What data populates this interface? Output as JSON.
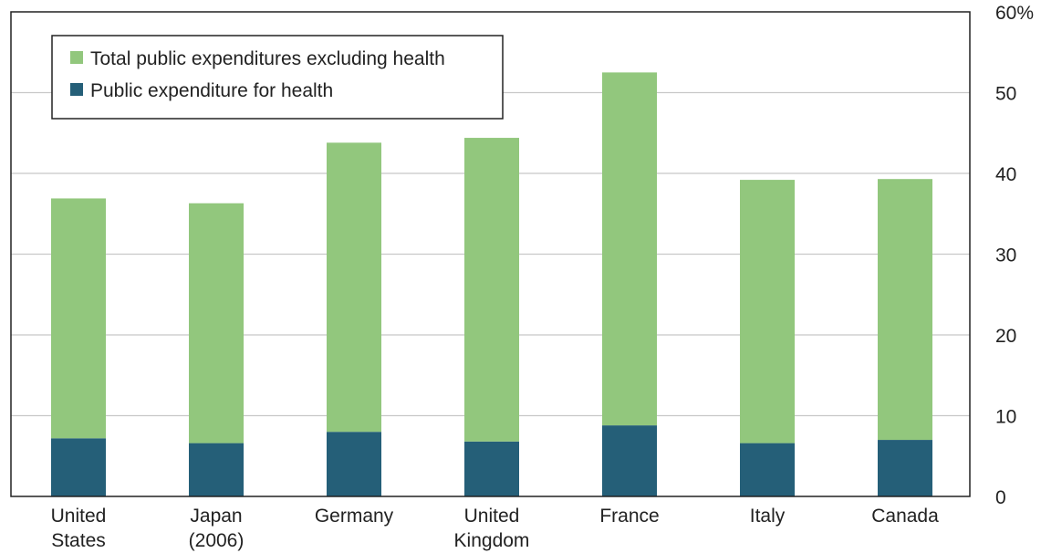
{
  "chart_data": {
    "type": "bar",
    "stacked": true,
    "categories": [
      [
        "United",
        "States"
      ],
      [
        "Japan",
        "(2006)"
      ],
      [
        "Germany"
      ],
      [
        "United",
        "Kingdom"
      ],
      [
        "France"
      ],
      [
        "Italy"
      ],
      [
        "Canada"
      ]
    ],
    "series": [
      {
        "name": "Public expenditure for health",
        "color": "#255f78",
        "values": [
          7.2,
          6.6,
          8.0,
          6.8,
          8.8,
          6.6,
          7.0
        ]
      },
      {
        "name": "Total public expenditures excluding health",
        "color": "#92c77d",
        "values": [
          29.7,
          29.7,
          35.8,
          37.6,
          43.7,
          32.6,
          32.3
        ]
      }
    ],
    "title": "",
    "xlabel": "",
    "ylabel": "",
    "ylim": [
      0,
      60
    ],
    "yticks": [
      0,
      10,
      20,
      30,
      40,
      50,
      60
    ],
    "ytick_labels": [
      "0",
      "10",
      "20",
      "30",
      "40",
      "50",
      "60%"
    ],
    "y_axis_side": "right",
    "grid": true,
    "grid_color": "#c8c8c8",
    "legend": {
      "position": "top-left",
      "entries": [
        {
          "label": "Total public expenditures excluding health",
          "color": "#92c77d"
        },
        {
          "label": "Public expenditure for health",
          "color": "#255f78"
        }
      ]
    }
  }
}
